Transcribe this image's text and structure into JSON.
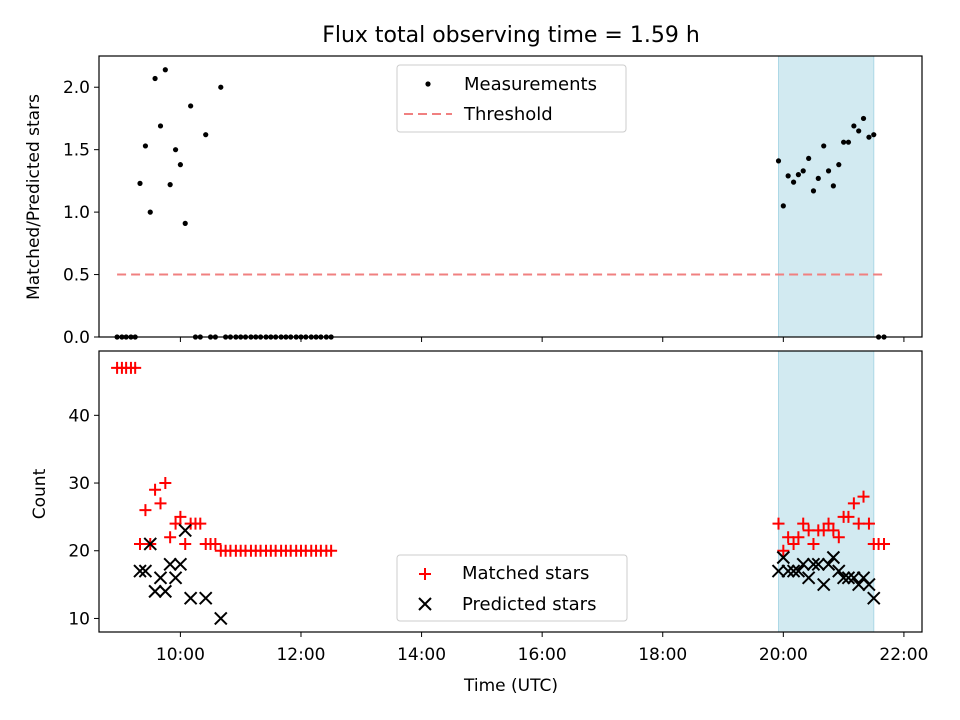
{
  "chart_data": [
    {
      "type": "scatter",
      "title": "Flux total observing time = 1.59 h",
      "xlabel": "",
      "ylabel": "Matched/Predicted stars",
      "xlim": [
        8.65,
        22.3
      ],
      "ylim": [
        0,
        2.25
      ],
      "yticks": [
        "0.0",
        "0.5",
        "1.0",
        "1.5",
        "2.0"
      ],
      "ytick_values": [
        0,
        0.5,
        1.0,
        1.5,
        2.0
      ],
      "shaded_span": [
        19.92,
        21.5
      ],
      "threshold": {
        "value": 0.5,
        "x_range": [
          8.95,
          21.65
        ],
        "color": "#f08080"
      },
      "legend": [
        "Measurements",
        "Threshold"
      ],
      "series": [
        {
          "name": "Measurements",
          "color": "#000000",
          "points": [
            [
              8.95,
              0
            ],
            [
              9.03,
              0
            ],
            [
              9.1,
              0
            ],
            [
              9.18,
              0
            ],
            [
              9.25,
              0
            ],
            [
              9.33,
              1.23
            ],
            [
              9.42,
              1.53
            ],
            [
              9.5,
              1.0
            ],
            [
              9.58,
              2.07
            ],
            [
              9.67,
              1.69
            ],
            [
              9.75,
              2.14
            ],
            [
              9.83,
              1.22
            ],
            [
              9.92,
              1.5
            ],
            [
              10.0,
              1.38
            ],
            [
              10.08,
              0.91
            ],
            [
              10.17,
              1.85
            ],
            [
              10.25,
              0
            ],
            [
              10.33,
              0
            ],
            [
              10.42,
              1.62
            ],
            [
              10.5,
              0
            ],
            [
              10.58,
              0
            ],
            [
              10.67,
              2.0
            ],
            [
              10.75,
              0
            ],
            [
              10.83,
              0
            ],
            [
              10.92,
              0
            ],
            [
              11.0,
              0
            ],
            [
              11.08,
              0
            ],
            [
              11.17,
              0
            ],
            [
              11.25,
              0
            ],
            [
              11.33,
              0
            ],
            [
              11.42,
              0
            ],
            [
              11.5,
              0
            ],
            [
              11.58,
              0
            ],
            [
              11.67,
              0
            ],
            [
              11.75,
              0
            ],
            [
              11.83,
              0
            ],
            [
              11.92,
              0
            ],
            [
              12.0,
              0
            ],
            [
              12.08,
              0
            ],
            [
              12.17,
              0
            ],
            [
              12.25,
              0
            ],
            [
              12.33,
              0
            ],
            [
              12.42,
              0
            ],
            [
              12.5,
              0
            ],
            [
              19.92,
              1.41
            ],
            [
              20.0,
              1.05
            ],
            [
              20.08,
              1.29
            ],
            [
              20.17,
              1.24
            ],
            [
              20.25,
              1.3
            ],
            [
              20.33,
              1.33
            ],
            [
              20.42,
              1.43
            ],
            [
              20.5,
              1.17
            ],
            [
              20.58,
              1.27
            ],
            [
              20.67,
              1.53
            ],
            [
              20.75,
              1.33
            ],
            [
              20.83,
              1.21
            ],
            [
              20.92,
              1.38
            ],
            [
              21.0,
              1.56
            ],
            [
              21.08,
              1.56
            ],
            [
              21.17,
              1.69
            ],
            [
              21.25,
              1.65
            ],
            [
              21.33,
              1.75
            ],
            [
              21.42,
              1.6
            ],
            [
              21.5,
              1.62
            ],
            [
              21.58,
              0
            ],
            [
              21.67,
              0
            ]
          ]
        }
      ]
    },
    {
      "type": "scatter",
      "title": "",
      "xlabel": "Time (UTC)",
      "ylabel": "Count",
      "xlim": [
        8.65,
        22.3
      ],
      "ylim": [
        8,
        49.5
      ],
      "yticks": [
        "10",
        "20",
        "30",
        "40"
      ],
      "ytick_values": [
        10,
        20,
        30,
        40
      ],
      "xticks": [
        "10:00",
        "12:00",
        "14:00",
        "16:00",
        "18:00",
        "20:00",
        "22:00"
      ],
      "xtick_values": [
        10,
        12,
        14,
        16,
        18,
        20,
        22
      ],
      "shaded_span": [
        19.92,
        21.5
      ],
      "legend": [
        "Matched stars",
        "Predicted stars"
      ],
      "series": [
        {
          "name": "Matched stars",
          "marker": "+",
          "color": "#ff0000",
          "points": [
            [
              8.95,
              47
            ],
            [
              9.03,
              47
            ],
            [
              9.1,
              47
            ],
            [
              9.18,
              47
            ],
            [
              9.25,
              47
            ],
            [
              9.33,
              21
            ],
            [
              9.42,
              26
            ],
            [
              9.5,
              21
            ],
            [
              9.58,
              29
            ],
            [
              9.67,
              27
            ],
            [
              9.75,
              30
            ],
            [
              9.83,
              22
            ],
            [
              9.92,
              24
            ],
            [
              10.0,
              25
            ],
            [
              10.08,
              21
            ],
            [
              10.17,
              24
            ],
            [
              10.25,
              24
            ],
            [
              10.33,
              24
            ],
            [
              10.42,
              21
            ],
            [
              10.5,
              21
            ],
            [
              10.58,
              21
            ],
            [
              10.67,
              20
            ],
            [
              10.75,
              20
            ],
            [
              10.83,
              20
            ],
            [
              10.92,
              20
            ],
            [
              11.0,
              20
            ],
            [
              11.08,
              20
            ],
            [
              11.17,
              20
            ],
            [
              11.25,
              20
            ],
            [
              11.33,
              20
            ],
            [
              11.42,
              20
            ],
            [
              11.5,
              20
            ],
            [
              11.58,
              20
            ],
            [
              11.67,
              20
            ],
            [
              11.75,
              20
            ],
            [
              11.83,
              20
            ],
            [
              11.92,
              20
            ],
            [
              12.0,
              20
            ],
            [
              12.08,
              20
            ],
            [
              12.17,
              20
            ],
            [
              12.25,
              20
            ],
            [
              12.33,
              20
            ],
            [
              12.42,
              20
            ],
            [
              12.5,
              20
            ],
            [
              19.92,
              24
            ],
            [
              20.0,
              20
            ],
            [
              20.08,
              22
            ],
            [
              20.17,
              21
            ],
            [
              20.25,
              22
            ],
            [
              20.33,
              24
            ],
            [
              20.42,
              23
            ],
            [
              20.5,
              21
            ],
            [
              20.58,
              23
            ],
            [
              20.67,
              23
            ],
            [
              20.75,
              24
            ],
            [
              20.83,
              23
            ],
            [
              20.92,
              22
            ],
            [
              21.0,
              25
            ],
            [
              21.08,
              25
            ],
            [
              21.17,
              27
            ],
            [
              21.25,
              24
            ],
            [
              21.33,
              28
            ],
            [
              21.42,
              24
            ],
            [
              21.5,
              21
            ],
            [
              21.58,
              21
            ],
            [
              21.67,
              21
            ]
          ]
        },
        {
          "name": "Predicted stars",
          "marker": "x",
          "color": "#000000",
          "points": [
            [
              9.33,
              17
            ],
            [
              9.42,
              17
            ],
            [
              9.5,
              21
            ],
            [
              9.58,
              14
            ],
            [
              9.67,
              16
            ],
            [
              9.75,
              14
            ],
            [
              9.83,
              18
            ],
            [
              9.92,
              16
            ],
            [
              10.0,
              18
            ],
            [
              10.08,
              23
            ],
            [
              10.17,
              13
            ],
            [
              10.42,
              13
            ],
            [
              10.67,
              10
            ],
            [
              19.92,
              17
            ],
            [
              20.0,
              19
            ],
            [
              20.08,
              17
            ],
            [
              20.17,
              17
            ],
            [
              20.25,
              17
            ],
            [
              20.33,
              18
            ],
            [
              20.42,
              16
            ],
            [
              20.5,
              18
            ],
            [
              20.58,
              18
            ],
            [
              20.67,
              15
            ],
            [
              20.75,
              18
            ],
            [
              20.83,
              19
            ],
            [
              20.92,
              17
            ],
            [
              21.0,
              16
            ],
            [
              21.08,
              16
            ],
            [
              21.17,
              16
            ],
            [
              21.25,
              15
            ],
            [
              21.33,
              16
            ],
            [
              21.42,
              15
            ],
            [
              21.5,
              13
            ]
          ]
        }
      ]
    }
  ]
}
